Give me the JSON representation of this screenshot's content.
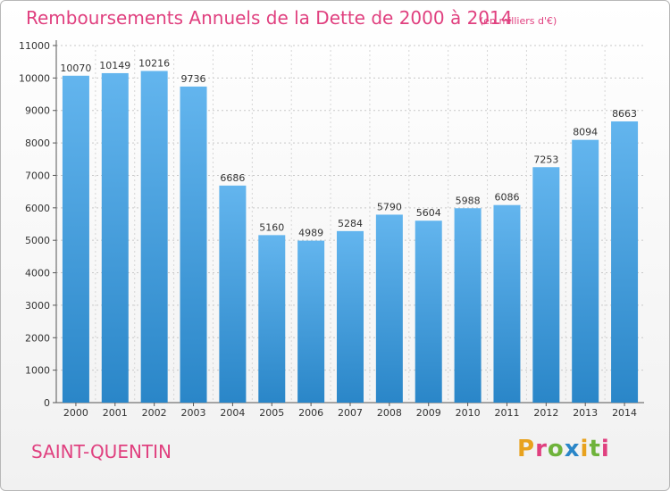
{
  "header": {
    "title": "Remboursements Annuels de la Dette de 2000 à 2014",
    "subtitle": "(en milliers d'€)"
  },
  "footer": {
    "city": "SAINT-QUENTIN",
    "logo": "Proxiti"
  },
  "colors": {
    "accent": "#e0407f",
    "bar_top": "#63b5ee",
    "bar_bottom": "#2a86c8",
    "logo_letters": [
      "#e8a21e",
      "#e0407f",
      "#6fb33b",
      "#2a86c8",
      "#e8a21e",
      "#6fb33b",
      "#e0407f"
    ]
  },
  "chart_data": {
    "type": "bar",
    "title": "Remboursements Annuels de la Dette de 2000 à 2014",
    "subtitle": "(en milliers d'€)",
    "categories": [
      "2000",
      "2001",
      "2002",
      "2003",
      "2004",
      "2005",
      "2006",
      "2007",
      "2008",
      "2009",
      "2010",
      "2011",
      "2012",
      "2013",
      "2014"
    ],
    "values": [
      10070,
      10149,
      10216,
      9736,
      6686,
      5160,
      4989,
      5284,
      5790,
      5604,
      5988,
      6086,
      7253,
      8094,
      8663
    ],
    "ylim": [
      0,
      11000
    ],
    "yticks": [
      0,
      1000,
      2000,
      3000,
      4000,
      5000,
      6000,
      7000,
      8000,
      9000,
      10000,
      11000
    ],
    "grid": "horizontal dashed",
    "legend": "none"
  }
}
